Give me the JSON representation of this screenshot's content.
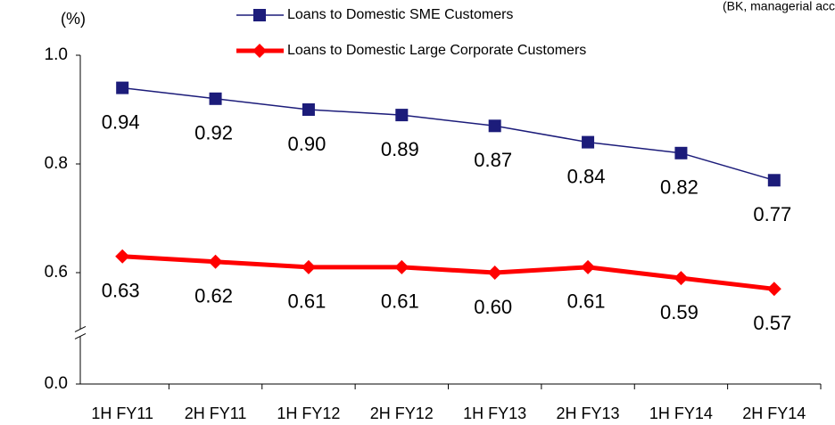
{
  "chart_data": {
    "type": "line",
    "y_unit_label": "(%)",
    "note": "(BK, managerial accounting",
    "categories": [
      "1H FY11",
      "2H FY11",
      "1H FY12",
      "2H FY12",
      "1H FY13",
      "2H FY13",
      "1H FY14",
      "2H FY14"
    ],
    "series": [
      {
        "name": "Loans to Domestic SME Customers",
        "color": "#1c1c7a",
        "marker": "square",
        "line_width": 1.5,
        "values": [
          0.94,
          0.92,
          0.9,
          0.89,
          0.87,
          0.84,
          0.82,
          0.77
        ],
        "value_labels": [
          "0.94",
          "0.92",
          "0.90",
          "0.89",
          "0.87",
          "0.84",
          "0.82",
          "0.77"
        ]
      },
      {
        "name": "Loans to Domestic Large Corporate Customers",
        "color": "#ff0000",
        "marker": "diamond",
        "line_width": 5,
        "values": [
          0.63,
          0.62,
          0.61,
          0.61,
          0.6,
          0.61,
          0.59,
          0.57
        ],
        "value_labels": [
          "0.63",
          "0.62",
          "0.61",
          "0.61",
          "0.60",
          "0.61",
          "0.59",
          "0.57"
        ]
      }
    ],
    "ylim": [
      0,
      1
    ],
    "yticks": [
      {
        "value": 0,
        "label": "0.0"
      },
      0.6,
      0.8,
      {
        "value": 1,
        "label": "1.0"
      }
    ],
    "axis_break": [
      0,
      0.5
    ]
  }
}
